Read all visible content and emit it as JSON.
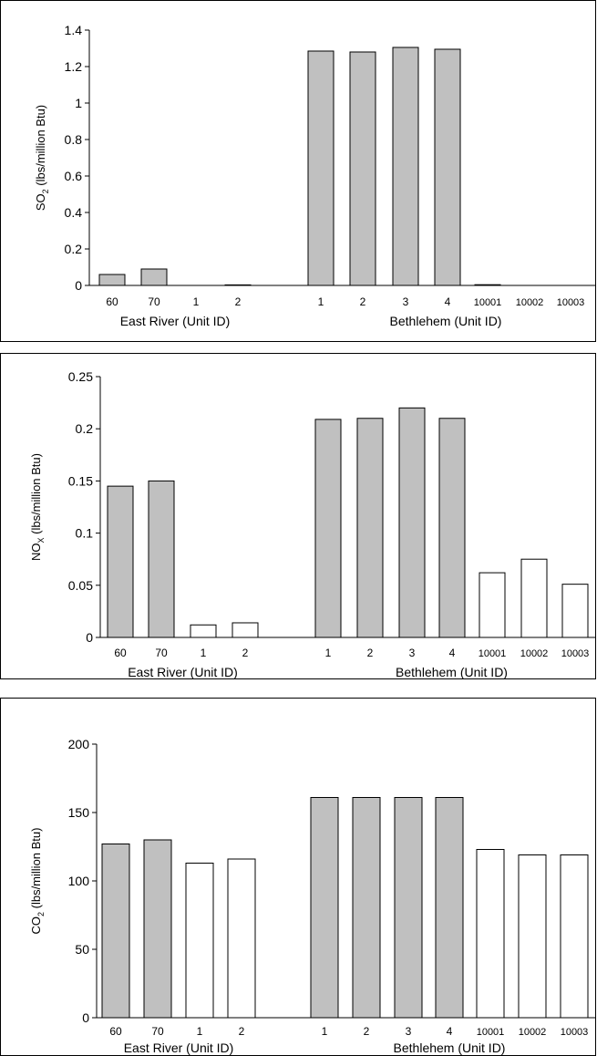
{
  "colors": {
    "filled": "#c0c0c0",
    "empty": "#ffffff",
    "outline": "#000000"
  },
  "chart_data": [
    {
      "type": "bar",
      "groups": [
        {
          "label": "East River (Unit ID)",
          "categories": [
            "60",
            "70",
            "1",
            "2"
          ]
        },
        {
          "label": "Bethlehem (Unit ID)",
          "categories": [
            "1",
            "2",
            "3",
            "4",
            "10001",
            "10002",
            "10003"
          ]
        }
      ],
      "values": [
        0.06,
        0.09,
        0,
        0.003,
        1.285,
        1.28,
        1.305,
        1.295,
        0.004,
        0,
        0
      ],
      "fills": [
        "filled",
        "filled",
        "empty",
        "empty",
        "filled",
        "filled",
        "filled",
        "filled",
        "empty",
        "empty",
        "empty"
      ],
      "ylabel": {
        "main": "SO",
        "sub": "2",
        "rest": " (lbs/million Btu)"
      },
      "ylim": [
        0,
        1.4
      ],
      "yticks": [
        "0",
        "0.2",
        "0.4",
        "0.6",
        "0.8",
        "1",
        "1.2",
        "1.4"
      ],
      "grid": false
    },
    {
      "type": "bar",
      "groups": [
        {
          "label": "East River (Unit ID)",
          "categories": [
            "60",
            "70",
            "1",
            "2"
          ]
        },
        {
          "label": "Bethlehem (Unit ID)",
          "categories": [
            "1",
            "2",
            "3",
            "4",
            "10001",
            "10002",
            "10003"
          ]
        }
      ],
      "values": [
        0.145,
        0.15,
        0.012,
        0.014,
        0.209,
        0.21,
        0.22,
        0.21,
        0.062,
        0.075,
        0.051
      ],
      "fills": [
        "filled",
        "filled",
        "empty",
        "empty",
        "filled",
        "filled",
        "filled",
        "filled",
        "empty",
        "empty",
        "empty"
      ],
      "ylabel": {
        "main": "NO",
        "sub": "X",
        "rest": " (lbs/million Btu)"
      },
      "ylim": [
        0,
        0.25
      ],
      "yticks": [
        "0",
        "0.05",
        "0.1",
        "0.15",
        "0.2",
        "0.25"
      ],
      "grid": false
    },
    {
      "type": "bar",
      "groups": [
        {
          "label": "East River (Unit ID)",
          "categories": [
            "60",
            "70",
            "1",
            "2"
          ]
        },
        {
          "label": "Bethlehem (Unit ID)",
          "categories": [
            "1",
            "2",
            "3",
            "4",
            "10001",
            "10002",
            "10003"
          ]
        }
      ],
      "values": [
        127,
        130,
        113,
        116,
        161,
        161,
        161,
        161,
        123,
        119,
        119
      ],
      "fills": [
        "filled",
        "filled",
        "empty",
        "empty",
        "filled",
        "filled",
        "filled",
        "filled",
        "empty",
        "empty",
        "empty"
      ],
      "ylabel": {
        "main": "CO",
        "sub": "2",
        "rest": " (lbs/million Btu)"
      },
      "ylim": [
        0,
        200
      ],
      "yticks": [
        "0",
        "50",
        "100",
        "150",
        "200"
      ],
      "grid": false
    }
  ]
}
